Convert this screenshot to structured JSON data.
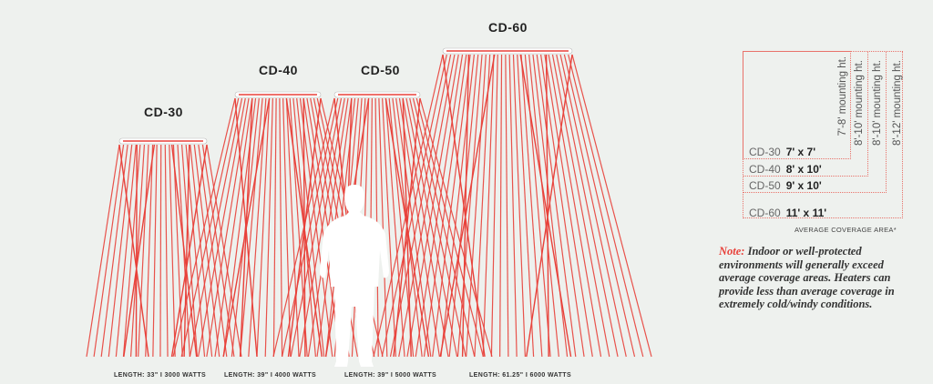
{
  "heaters": [
    {
      "model": "CD-30",
      "length_label": "LENGTH: 33\" I 3000 WATTS"
    },
    {
      "model": "CD-40",
      "length_label": "LENGTH: 39\" I 4000 WATTS"
    },
    {
      "model": "CD-50",
      "length_label": "LENGTH: 39\" I 5000 WATTS"
    },
    {
      "model": "CD-60",
      "length_label": "LENGTH: 61.25\" I 6000 WATTS"
    }
  ],
  "coverage": {
    "rows": [
      {
        "model": "CD-30",
        "area": "7' x 7'",
        "mounting": "7'-8' mounting ht."
      },
      {
        "model": "CD-40",
        "area": "8' x 10'",
        "mounting": "8'-10' mounting ht."
      },
      {
        "model": "CD-50",
        "area": "9' x 10'",
        "mounting": "8'-10' mounting ht."
      },
      {
        "model": "CD-60",
        "area": "11' x 11'",
        "mounting": "8'-12' mounting ht."
      }
    ],
    "caption": "AVERAGE COVERAGE AREA*"
  },
  "note": {
    "label": "Note:",
    "text": "Indoor or well-protected environments will generally exceed average coverage areas. Heaters can provide less than average coverage in extremely cold/windy conditions."
  },
  "colors": {
    "ray": "#e8413a",
    "dotted": "#e8726a"
  }
}
